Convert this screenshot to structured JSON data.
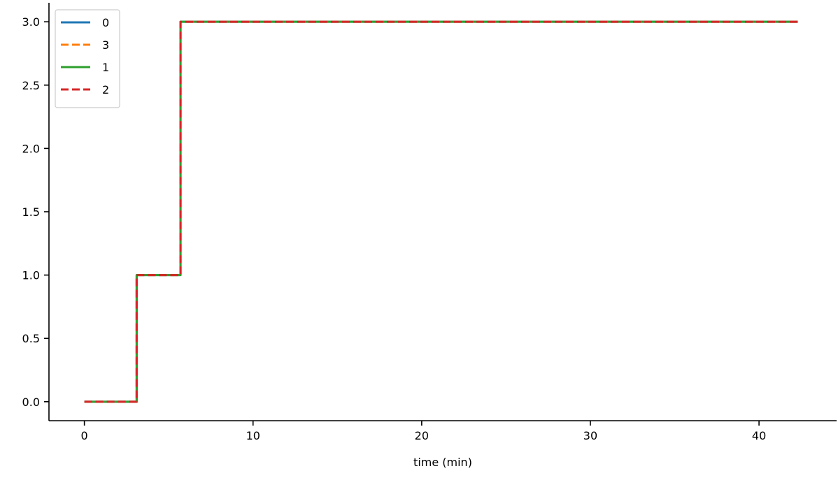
{
  "chart_data": {
    "type": "line",
    "title": "",
    "xlabel": "time (min)",
    "ylabel": "",
    "xlim": [
      -2.1,
      44.6
    ],
    "ylim": [
      -0.15,
      3.15
    ],
    "x_ticks": [
      0,
      10,
      20,
      30,
      40
    ],
    "x_tick_labels": [
      "0",
      "10",
      "20",
      "30",
      "40"
    ],
    "y_ticks": [
      0.0,
      0.5,
      1.0,
      1.5,
      2.0,
      2.5,
      3.0
    ],
    "y_tick_labels": [
      "0.0",
      "0.5",
      "1.0",
      "1.5",
      "2.0",
      "2.5",
      "3.0"
    ],
    "grid": false,
    "legend_position": "upper-left",
    "series": [
      {
        "name": "0",
        "color": "#1f77b4",
        "style": "solid",
        "x": [
          0,
          3.1,
          3.1,
          5.7,
          5.7,
          42.3
        ],
        "y": [
          0,
          0,
          1,
          1,
          3,
          3
        ]
      },
      {
        "name": "3",
        "color": "#ff7f0e",
        "style": "dashed",
        "x": [
          0,
          3.1,
          3.1,
          5.7,
          5.7,
          42.3
        ],
        "y": [
          0,
          0,
          1,
          1,
          3,
          3
        ]
      },
      {
        "name": "1",
        "color": "#2ca02c",
        "style": "solid",
        "x": [
          0,
          3.1,
          3.1,
          5.7,
          5.7,
          42.3
        ],
        "y": [
          0,
          0,
          1,
          1,
          3,
          3
        ]
      },
      {
        "name": "2",
        "color": "#d62728",
        "style": "dashed",
        "x": [
          0,
          3.1,
          3.1,
          5.7,
          5.7,
          42.3
        ],
        "y": [
          0,
          0,
          1,
          1,
          3,
          3
        ]
      }
    ]
  }
}
